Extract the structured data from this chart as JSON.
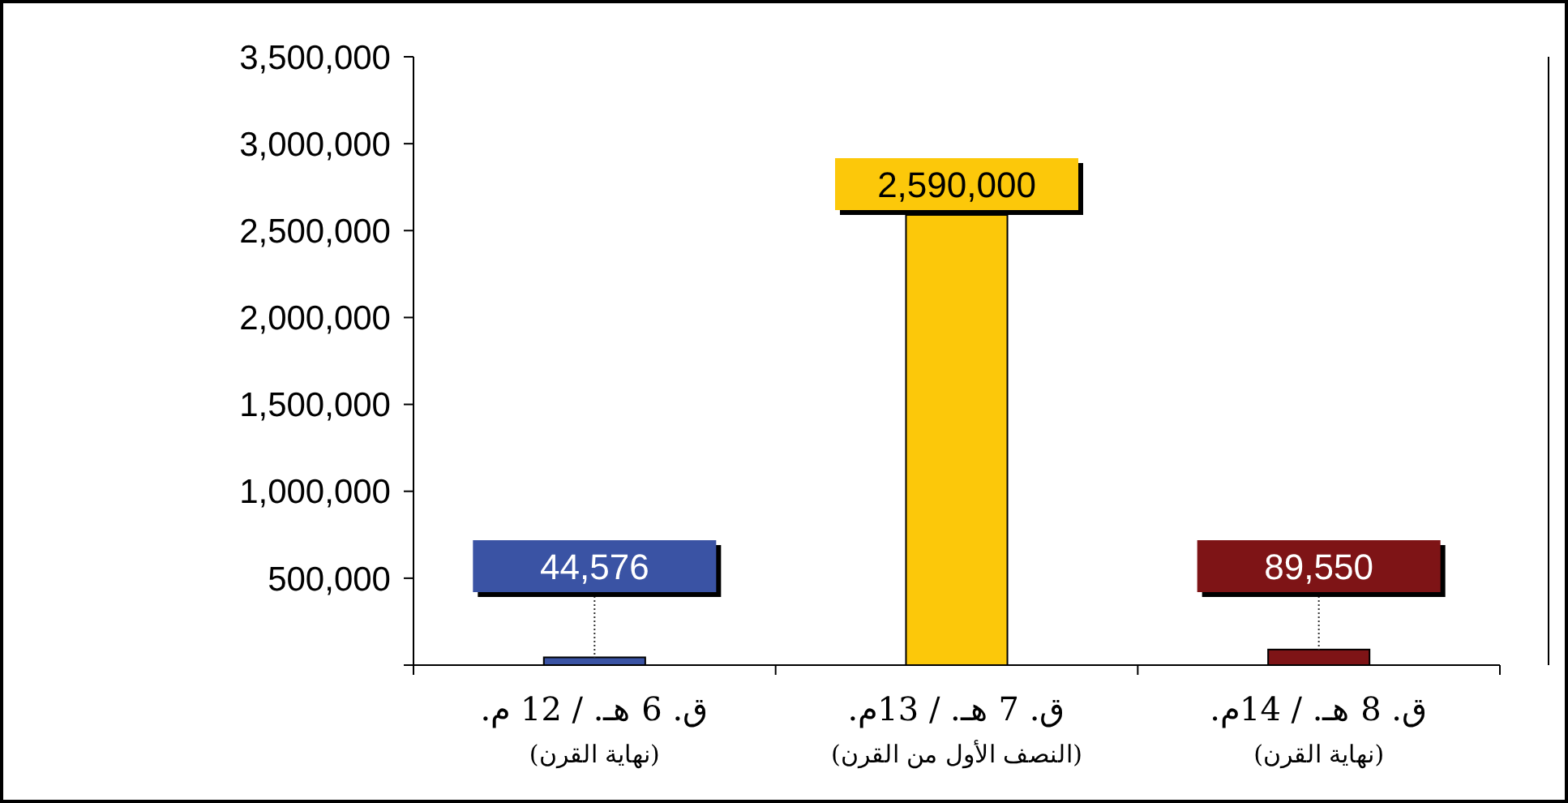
{
  "chart_data": {
    "type": "bar",
    "categories": [
      "ق. 6 هـ. / 12 م.\n(نهاية القرن)",
      "ق. 7 هـ. / 13م.\n(النصف الأول من القرن)",
      "ق. 8 هـ. / 14م.\n(نهاية القرن)"
    ],
    "values": [
      44576,
      2590000,
      89550
    ],
    "colors": [
      "#3a53a4",
      "#fcc80a",
      "#7e1416"
    ],
    "ylim": [
      0,
      3500000
    ],
    "yticks": [
      {
        "value": 0,
        "label": null
      },
      {
        "value": 500000,
        "label": "500,000"
      },
      {
        "value": 1000000,
        "label": "1,000,000"
      },
      {
        "value": 1500000,
        "label": "1,500,000"
      },
      {
        "value": 2000000,
        "label": "2,000,000"
      },
      {
        "value": 2500000,
        "label": "2,500,000"
      },
      {
        "value": 3000000,
        "label": "3,000,000"
      },
      {
        "value": 3500000,
        "label": "3,500,000"
      }
    ],
    "value_labels": [
      "44,576",
      "2,590,000",
      "89,550"
    ],
    "grid": false
  }
}
